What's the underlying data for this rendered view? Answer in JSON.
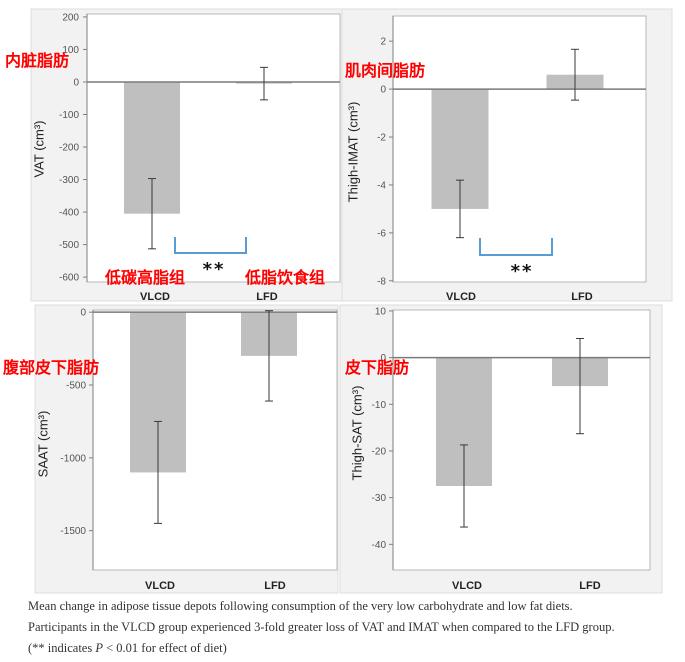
{
  "colors": {
    "bar": "#bfbfbf",
    "error_bar": "#3a3a3a",
    "zero_line": "#7a7a7a",
    "significance_bracket": "#5b9bd5",
    "annotation_text": "#ff0000"
  },
  "chart_data": [
    {
      "type": "bar",
      "categories": [
        "VLCD",
        "LFD"
      ],
      "values": [
        -405,
        -5
      ],
      "error_bars": [
        108,
        50
      ],
      "ylabel": "VAT (cm³)",
      "ylim": [
        -615,
        209
      ],
      "yticks": [
        200,
        100,
        0,
        -100,
        -200,
        -300,
        -400,
        -500,
        -600
      ],
      "grid": false,
      "significance": {
        "between": [
          0,
          1
        ],
        "label": "**"
      },
      "annotations": [
        "内脏脂肪",
        "低碳高脂组",
        "低脂饮食组"
      ]
    },
    {
      "type": "bar",
      "categories": [
        "VLCD",
        "LFD"
      ],
      "values": [
        -5.0,
        0.6
      ],
      "error_bars": [
        1.2,
        1.06
      ],
      "ylabel": "Thigh-IMAT (cm³)",
      "ylim": [
        -8.05,
        3.05
      ],
      "yticks": [
        2,
        0,
        -2,
        -4,
        -6,
        -8
      ],
      "grid": false,
      "significance": {
        "between": [
          0,
          1
        ],
        "label": "**"
      },
      "annotations": [
        "肌肉间脂肪"
      ]
    },
    {
      "type": "bar",
      "categories": [
        "VLCD",
        "LFD"
      ],
      "values": [
        -1100,
        -300
      ],
      "error_bars": [
        350,
        310
      ],
      "ylabel": "SAAT (cm³)",
      "ylim": [
        -1770,
        15
      ],
      "yticks": [
        0,
        -500,
        -1000,
        -1500
      ],
      "grid": false,
      "annotations": [
        "腹部皮下脂肪"
      ]
    },
    {
      "type": "bar",
      "categories": [
        "VLCD",
        "LFD"
      ],
      "values": [
        -27.5,
        -6.1
      ],
      "error_bars": [
        8.8,
        10.2
      ],
      "ylabel": "Thigh-SAT (cm³)",
      "ylim": [
        -45.5,
        10.2
      ],
      "yticks": [
        10,
        0,
        -10,
        -20,
        -30,
        -40
      ],
      "grid": false,
      "annotations": [
        "皮下脂肪"
      ]
    }
  ],
  "caption": {
    "line1": "Mean change in adipose tissue depots following consumption of the very low carbohydrate and low fat diets.",
    "line2": "Participants in the VLCD group experienced 3-fold greater loss of VAT and IMAT when compared to the LFD group.",
    "line3_start": "(** indicates ",
    "line3_italic": "P",
    "line3_end": " < 0.01 for effect of diet)"
  }
}
